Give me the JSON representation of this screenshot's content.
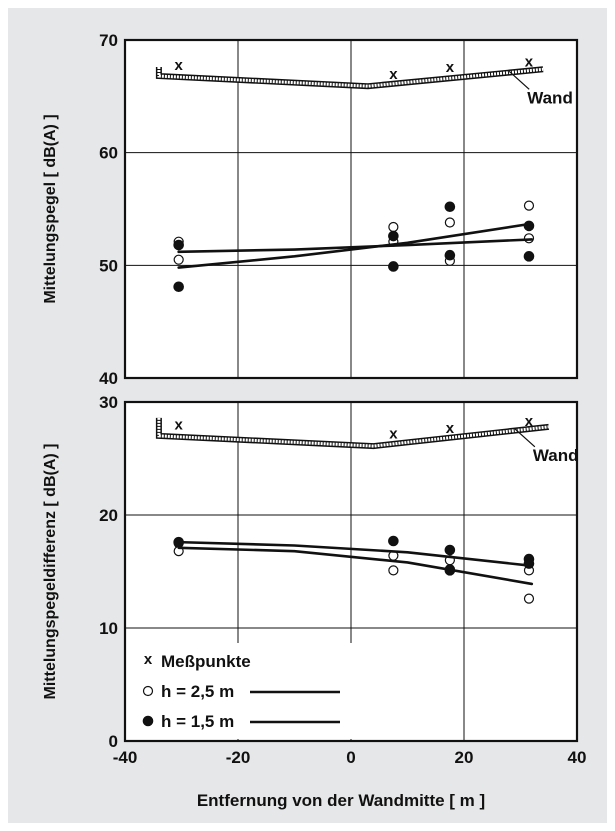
{
  "chart_data": [
    {
      "type": "scatter",
      "xlabel": "",
      "ylabel": "Mittelungspegel  [ dB(A) ]",
      "xlim": [
        -40,
        40
      ],
      "ylim": [
        40,
        70
      ],
      "x_ticks": [],
      "y_ticks": [
        "40",
        "50",
        "60",
        "70"
      ],
      "grid": true,
      "wall": {
        "label": "Wand",
        "points": [
          [
            -34,
            67.6
          ],
          [
            -34,
            66.8
          ],
          [
            3,
            65.9
          ],
          [
            34,
            67.4
          ]
        ]
      },
      "series": [
        {
          "marker": "x",
          "points": [
            [
              -30.5,
              67.8
            ],
            [
              7.5,
              67.0
            ],
            [
              17.5,
              67.6
            ],
            [
              31.5,
              68.1
            ]
          ]
        },
        {
          "marker": "open",
          "points": [
            [
              -30.5,
              52.1
            ],
            [
              -30.5,
              50.5
            ],
            [
              7.5,
              53.4
            ],
            [
              7.5,
              52.1
            ],
            [
              17.5,
              53.8
            ],
            [
              17.5,
              50.4
            ],
            [
              31.5,
              55.3
            ],
            [
              31.5,
              52.4
            ]
          ]
        },
        {
          "marker": "filled",
          "points": [
            [
              -30.5,
              51.8
            ],
            [
              -30.5,
              48.1
            ],
            [
              7.5,
              52.6
            ],
            [
              7.5,
              49.9
            ],
            [
              17.5,
              55.2
            ],
            [
              17.5,
              50.9
            ],
            [
              31.5,
              53.5
            ],
            [
              31.5,
              50.8
            ]
          ]
        },
        {
          "marker": "line",
          "points": [
            [
              -30.5,
              51.2
            ],
            [
              -10,
              51.4
            ],
            [
              10,
              51.8
            ],
            [
              32,
              52.3
            ]
          ]
        },
        {
          "marker": "line",
          "points": [
            [
              -30.5,
              49.8
            ],
            [
              -10,
              50.8
            ],
            [
              10,
              52.0
            ],
            [
              32,
              53.7
            ]
          ]
        }
      ]
    },
    {
      "type": "scatter",
      "xlabel": "Entfernung von der Wandmitte   [ m ]",
      "ylabel": "Mittelungspegeldifferenz  [ dB(A) ]",
      "xlim": [
        -40,
        40
      ],
      "ylim": [
        0,
        30
      ],
      "x_ticks": [
        "-40",
        "-20",
        "0",
        "20",
        "40"
      ],
      "y_ticks": [
        "0",
        "10",
        "20",
        "30"
      ],
      "grid": true,
      "wall": {
        "label": "Wand",
        "points": [
          [
            -34,
            28.6
          ],
          [
            -34,
            27.0
          ],
          [
            4,
            26.1
          ],
          [
            35,
            27.8
          ]
        ]
      },
      "series": [
        {
          "marker": "x",
          "points": [
            [
              -30.5,
              28.0
            ],
            [
              7.5,
              27.2
            ],
            [
              17.5,
              27.7
            ],
            [
              31.5,
              28.3
            ]
          ]
        },
        {
          "marker": "open",
          "points": [
            [
              -30.5,
              17.5
            ],
            [
              -30.5,
              16.8
            ],
            [
              7.5,
              16.4
            ],
            [
              7.5,
              15.1
            ],
            [
              17.5,
              16.0
            ],
            [
              17.5,
              15.2
            ],
            [
              31.5,
              15.1
            ],
            [
              31.5,
              12.6
            ]
          ]
        },
        {
          "marker": "filled",
          "points": [
            [
              -30.5,
              17.6
            ],
            [
              7.5,
              17.7
            ],
            [
              17.5,
              16.9
            ],
            [
              17.5,
              15.1
            ],
            [
              31.5,
              16.1
            ],
            [
              31.5,
              15.7
            ]
          ]
        },
        {
          "marker": "line",
          "points": [
            [
              -30.5,
              17.6
            ],
            [
              -10,
              17.3
            ],
            [
              10,
              16.7
            ],
            [
              32,
              15.5
            ]
          ]
        },
        {
          "marker": "line",
          "points": [
            [
              -30.5,
              17.1
            ],
            [
              -10,
              16.8
            ],
            [
              10,
              15.8
            ],
            [
              32,
              13.9
            ]
          ]
        }
      ]
    }
  ],
  "legend": {
    "items": [
      {
        "symbol": "x",
        "label": "Meßpunkte",
        "line": false
      },
      {
        "symbol": "open",
        "label": "h = 2,5 m",
        "line": true
      },
      {
        "symbol": "filled",
        "label": "h = 1,5 m",
        "line": true
      }
    ]
  }
}
